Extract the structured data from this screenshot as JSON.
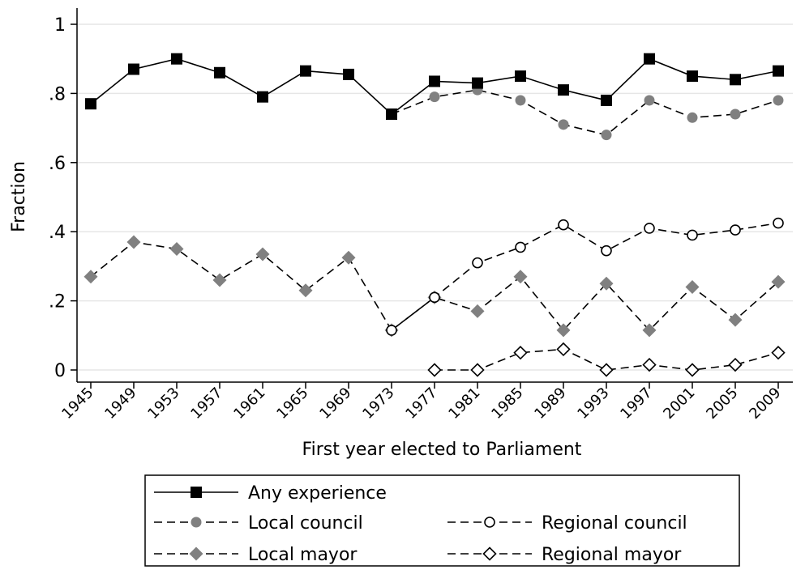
{
  "chart_data": {
    "type": "line",
    "title": "",
    "xlabel": "First year elected to Parliament",
    "ylabel": "Fraction",
    "ylim": [
      0,
      1
    ],
    "grid": "horizontal",
    "legend_position": "bottom",
    "x": [
      1945,
      1949,
      1953,
      1957,
      1961,
      1965,
      1969,
      1973,
      1977,
      1981,
      1985,
      1989,
      1993,
      1997,
      2001,
      2005,
      2009
    ],
    "x_tick_labels": [
      "1945",
      "1949",
      "1953",
      "1957",
      "1961",
      "1965",
      "1969",
      "1973",
      "1977",
      "1981",
      "1985",
      "1989",
      "1993",
      "1997",
      "2001",
      "2005",
      "2009"
    ],
    "y_ticks": [
      0,
      0.2,
      0.4,
      0.6,
      0.8,
      1
    ],
    "y_tick_labels": [
      "0",
      ".2",
      ".4",
      ".6",
      ".8",
      "1"
    ],
    "series": [
      {
        "name": "Any experience",
        "line": "solid",
        "marker": "filled-square",
        "color": "#000000",
        "x": [
          1945,
          1949,
          1953,
          1957,
          1961,
          1965,
          1969,
          1973,
          1977,
          1981,
          1985,
          1989,
          1993,
          1997,
          2001,
          2005,
          2009
        ],
        "values": [
          0.77,
          0.87,
          0.9,
          0.86,
          0.79,
          0.865,
          0.855,
          0.74,
          0.835,
          0.83,
          0.85,
          0.81,
          0.78,
          0.9,
          0.85,
          0.84,
          0.865
        ]
      },
      {
        "name": "Local council",
        "line": "dashed",
        "marker": "filled-circle",
        "color": "#808080",
        "x": [
          1973,
          1977,
          1981,
          1985,
          1989,
          1993,
          1997,
          2001,
          2005,
          2009
        ],
        "values": [
          0.74,
          0.79,
          0.81,
          0.78,
          0.71,
          0.68,
          0.78,
          0.73,
          0.74,
          0.78
        ]
      },
      {
        "name": "Regional council",
        "line": "dashed",
        "marker": "hollow-circle",
        "color": "#000000",
        "x": [
          1973,
          1977,
          1981,
          1985,
          1989,
          1993,
          1997,
          2001,
          2005,
          2009
        ],
        "values": [
          0.115,
          0.21,
          0.31,
          0.355,
          0.42,
          0.345,
          0.41,
          0.39,
          0.405,
          0.425
        ]
      },
      {
        "name": "Local mayor",
        "line": "dashed",
        "marker": "filled-diamond",
        "color": "#808080",
        "x": [
          1945,
          1949,
          1953,
          1957,
          1961,
          1965,
          1969,
          1973,
          1977,
          1981,
          1985,
          1989,
          1993,
          1997,
          2001,
          2005,
          2009
        ],
        "values": [
          0.27,
          0.37,
          0.35,
          0.26,
          0.335,
          0.23,
          0.325,
          0.115,
          0.21,
          0.17,
          0.27,
          0.115,
          0.25,
          0.115,
          0.24,
          0.145,
          0.255
        ]
      },
      {
        "name": "Regional mayor",
        "line": "dashed",
        "marker": "hollow-diamond",
        "color": "#000000",
        "x": [
          1977,
          1981,
          1985,
          1989,
          1993,
          1997,
          2001,
          2005,
          2009
        ],
        "values": [
          0,
          0,
          0.05,
          0.06,
          0,
          0.015,
          0,
          0.015,
          0.05
        ]
      }
    ]
  }
}
